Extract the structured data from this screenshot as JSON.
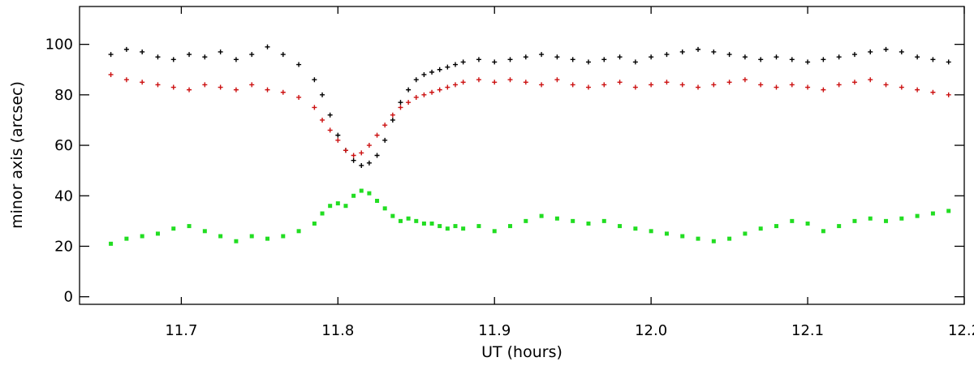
{
  "chart_data": {
    "type": "scatter",
    "title": "",
    "xlabel": "UT (hours)",
    "ylabel": "minor axis (arcsec)",
    "xlim": [
      11.635,
      12.2
    ],
    "ylim": [
      -3,
      115
    ],
    "xticks": [
      11.7,
      11.8,
      11.9,
      12.0,
      12.1,
      12.2
    ],
    "xtick_labels": [
      "11.7",
      "11.8",
      "11.9",
      "12.0",
      "12.1",
      "12.2"
    ],
    "yticks": [
      0,
      20,
      40,
      60,
      80,
      100
    ],
    "ytick_labels": [
      "0",
      "20",
      "40",
      "60",
      "80",
      "100"
    ],
    "grid": false,
    "legend": "none",
    "series": [
      {
        "color": "#000000",
        "marker": "plus",
        "x": [
          11.655,
          11.665,
          11.675,
          11.685,
          11.695,
          11.705,
          11.715,
          11.725,
          11.735,
          11.745,
          11.755,
          11.765,
          11.775,
          11.785,
          11.79,
          11.795,
          11.8,
          11.805,
          11.81,
          11.815,
          11.82,
          11.825,
          11.83,
          11.835,
          11.84,
          11.845,
          11.85,
          11.855,
          11.86,
          11.865,
          11.87,
          11.875,
          11.88,
          11.89,
          11.9,
          11.91,
          11.92,
          11.93,
          11.94,
          11.95,
          11.96,
          11.97,
          11.98,
          11.99,
          12.0,
          12.01,
          12.02,
          12.03,
          12.04,
          12.05,
          12.06,
          12.07,
          12.08,
          12.09,
          12.1,
          12.11,
          12.12,
          12.13,
          12.14,
          12.15,
          12.16,
          12.17,
          12.18,
          12.19
        ],
        "y": [
          96,
          98,
          97,
          95,
          94,
          96,
          95,
          97,
          94,
          96,
          99,
          96,
          92,
          86,
          80,
          72,
          64,
          58,
          54,
          52,
          53,
          56,
          62,
          70,
          77,
          82,
          86,
          88,
          89,
          90,
          91,
          92,
          93,
          94,
          93,
          94,
          95,
          96,
          95,
          94,
          93,
          94,
          95,
          93,
          95,
          96,
          97,
          98,
          97,
          96,
          95,
          94,
          95,
          94,
          93,
          94,
          95,
          96,
          97,
          98,
          97,
          95,
          94,
          93
        ]
      },
      {
        "color": "#cc1111",
        "marker": "plus",
        "x": [
          11.655,
          11.665,
          11.675,
          11.685,
          11.695,
          11.705,
          11.715,
          11.725,
          11.735,
          11.745,
          11.755,
          11.765,
          11.775,
          11.785,
          11.79,
          11.795,
          11.8,
          11.805,
          11.81,
          11.815,
          11.82,
          11.825,
          11.83,
          11.835,
          11.84,
          11.845,
          11.85,
          11.855,
          11.86,
          11.865,
          11.87,
          11.875,
          11.88,
          11.89,
          11.9,
          11.91,
          11.92,
          11.93,
          11.94,
          11.95,
          11.96,
          11.97,
          11.98,
          11.99,
          12.0,
          12.01,
          12.02,
          12.03,
          12.04,
          12.05,
          12.06,
          12.07,
          12.08,
          12.09,
          12.1,
          12.11,
          12.12,
          12.13,
          12.14,
          12.15,
          12.16,
          12.17,
          12.18,
          12.19
        ],
        "y": [
          88,
          86,
          85,
          84,
          83,
          82,
          84,
          83,
          82,
          84,
          82,
          81,
          79,
          75,
          70,
          66,
          62,
          58,
          56,
          57,
          60,
          64,
          68,
          72,
          75,
          77,
          79,
          80,
          81,
          82,
          83,
          84,
          85,
          86,
          85,
          86,
          85,
          84,
          86,
          84,
          83,
          84,
          85,
          83,
          84,
          85,
          84,
          83,
          84,
          85,
          86,
          84,
          83,
          84,
          83,
          82,
          84,
          85,
          86,
          84,
          83,
          82,
          81,
          80
        ]
      },
      {
        "color": "#22dd22",
        "marker": "square",
        "x": [
          11.655,
          11.665,
          11.675,
          11.685,
          11.695,
          11.705,
          11.715,
          11.725,
          11.735,
          11.745,
          11.755,
          11.765,
          11.775,
          11.785,
          11.79,
          11.795,
          11.8,
          11.805,
          11.81,
          11.815,
          11.82,
          11.825,
          11.83,
          11.835,
          11.84,
          11.845,
          11.85,
          11.855,
          11.86,
          11.865,
          11.87,
          11.875,
          11.88,
          11.89,
          11.9,
          11.91,
          11.92,
          11.93,
          11.94,
          11.95,
          11.96,
          11.97,
          11.98,
          11.99,
          12.0,
          12.01,
          12.02,
          12.03,
          12.04,
          12.05,
          12.06,
          12.07,
          12.08,
          12.09,
          12.1,
          12.11,
          12.12,
          12.13,
          12.14,
          12.15,
          12.16,
          12.17,
          12.18,
          12.19
        ],
        "y": [
          21,
          23,
          24,
          25,
          27,
          28,
          26,
          24,
          22,
          24,
          23,
          24,
          26,
          29,
          33,
          36,
          37,
          36,
          40,
          42,
          41,
          38,
          35,
          32,
          30,
          31,
          30,
          29,
          29,
          28,
          27,
          28,
          27,
          28,
          26,
          28,
          30,
          32,
          31,
          30,
          29,
          30,
          28,
          27,
          26,
          25,
          24,
          23,
          22,
          23,
          25,
          27,
          28,
          30,
          29,
          26,
          28,
          30,
          31,
          30,
          31,
          32,
          33,
          34
        ]
      }
    ]
  }
}
